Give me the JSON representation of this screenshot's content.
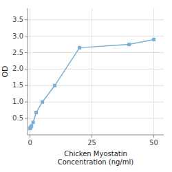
{
  "chart_data": {
    "type": "line",
    "x": [
      0,
      0.156,
      0.313,
      0.625,
      1.25,
      2.5,
      5,
      10,
      20,
      40,
      50
    ],
    "values": [
      0.195,
      0.21,
      0.235,
      0.27,
      0.38,
      0.68,
      1.0,
      1.5,
      2.65,
      2.75,
      2.9
    ],
    "color": "#7aafd4",
    "marker": "square",
    "line_style": "solid",
    "xlabel": "Chicken Myostatin\nConcentration (ng/ml)",
    "ylabel": "OD",
    "xlim": [
      -1,
      54
    ],
    "ylim": [
      0.0,
      3.85
    ],
    "xticks": [
      0,
      25,
      50
    ],
    "yticks": [
      0.5,
      {
        "value": 1.0,
        "label": "1.0"
      },
      1.5,
      {
        "value": 2.0,
        "label": "2.0"
      },
      2.5,
      {
        "value": 3.0,
        "label": "3.0"
      },
      3.5
    ],
    "grid": true
  }
}
